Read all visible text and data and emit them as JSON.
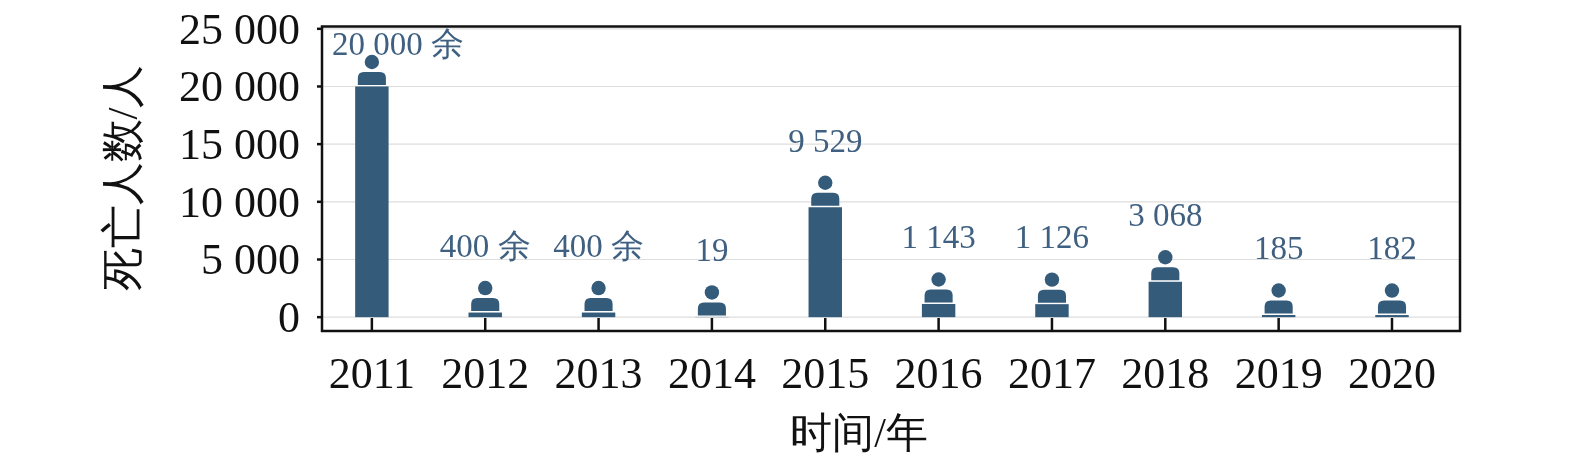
{
  "chart_data": {
    "type": "bar",
    "xlabel": "时间/年",
    "ylabel": "死亡人数/人",
    "categories": [
      "2011",
      "2012",
      "2013",
      "2014",
      "2015",
      "2016",
      "2017",
      "2018",
      "2019",
      "2020"
    ],
    "values": [
      20000,
      400,
      400,
      19,
      9529,
      1143,
      1126,
      3068,
      185,
      182
    ],
    "value_labels": [
      "20 000 余",
      "400 余",
      "400 余",
      "19",
      "9 529",
      "1 143",
      "1 126",
      "3 068",
      "185",
      "182"
    ],
    "color": "#355b7b",
    "ylim": [
      -1200,
      25200
    ],
    "yticks": [
      0,
      {
        "value": 5000,
        "label": "5 000"
      },
      {
        "value": 10000,
        "label": "10 000"
      },
      {
        "value": 15000,
        "label": "15 000"
      },
      {
        "value": 20000,
        "label": "20 000"
      },
      {
        "value": 25000,
        "label": "25 000"
      }
    ],
    "grid": "y"
  }
}
